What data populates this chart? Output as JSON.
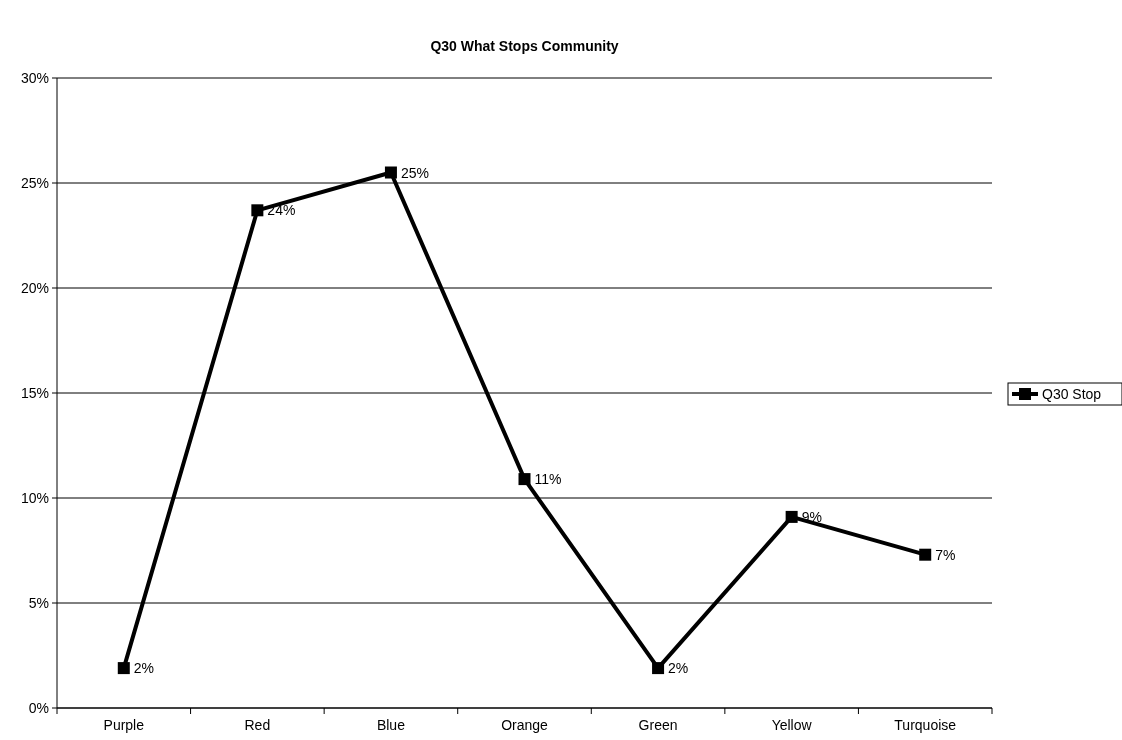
{
  "chart_data": {
    "type": "line",
    "title": "Q30 What Stops Community",
    "categories": [
      "Purple",
      "Red",
      "Blue",
      "Orange",
      "Green",
      "Yellow",
      "Turquoise"
    ],
    "series": [
      {
        "name": "Q30 Stop",
        "color": "#000000",
        "values": [
          1.9,
          23.7,
          25.5,
          10.9,
          1.9,
          9.1,
          7.3
        ],
        "value_labels": [
          "2%",
          "24%",
          "25%",
          "11%",
          "2%",
          "9%",
          "7%"
        ]
      }
    ],
    "ylim": [
      0,
      30
    ],
    "yticks": [
      {
        "value": 0,
        "label": "0%"
      },
      {
        "value": 5,
        "label": "5%"
      },
      {
        "value": 10,
        "label": "10%"
      },
      {
        "value": 15,
        "label": "15%"
      },
      {
        "value": 20,
        "label": "20%"
      },
      {
        "value": 25,
        "label": "25%"
      },
      {
        "value": 30,
        "label": "30%"
      }
    ],
    "grid": "y",
    "legend": "right",
    "marker": "square",
    "line_style": "solid"
  }
}
